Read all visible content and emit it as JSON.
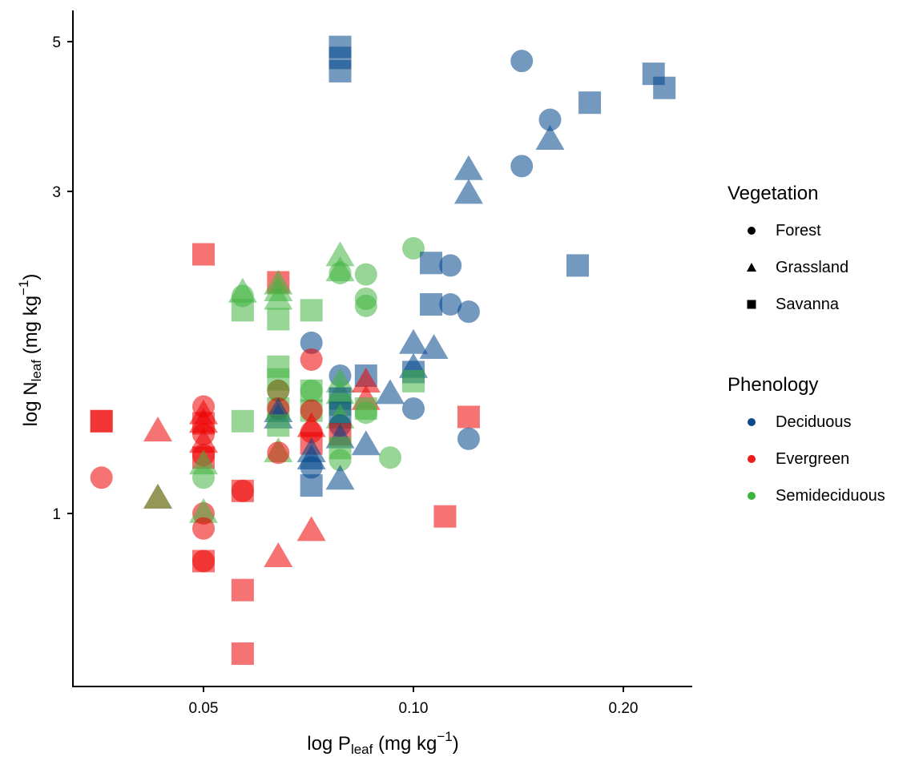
{
  "chart_data": {
    "type": "scatter",
    "title": "",
    "xlabel": {
      "prefix": "log P",
      "sub": "leaf",
      "unit_pre": " (mg kg",
      "sup": "−1",
      "unit_post": ")"
    },
    "ylabel": {
      "prefix": "log N",
      "sub": "leaf",
      "unit_pre": " (mg kg",
      "sup": "−1",
      "unit_post": ")"
    },
    "x_scale": "log",
    "y_scale": "log",
    "xlim": [
      0.0335,
      0.245
    ],
    "ylim": [
      0.56,
      5.6
    ],
    "x_ticks": [
      {
        "value": 0.05,
        "label": "0.05"
      },
      {
        "value": 0.1,
        "label": "0.10"
      },
      {
        "value": 0.2,
        "label": "0.20"
      }
    ],
    "y_ticks": [
      {
        "value": 1,
        "label": "1"
      },
      {
        "value": 3,
        "label": "3"
      },
      {
        "value": 5,
        "label": "5"
      }
    ],
    "grid": false,
    "marker_alpha": 0.55,
    "legend_placement": "right",
    "legends": [
      {
        "title": "Vegetation",
        "items": [
          {
            "label": "Forest",
            "shape": "circle"
          },
          {
            "label": "Grassland",
            "shape": "triangle"
          },
          {
            "label": "Savanna",
            "shape": "square"
          }
        ]
      },
      {
        "title": "Phenology",
        "items": [
          {
            "label": "Deciduous",
            "color": "#0B4A8B"
          },
          {
            "label": "Evergreen",
            "color": "#EE1C1C"
          },
          {
            "label": "Semideciduous",
            "color": "#3CB53C"
          }
        ]
      }
    ],
    "colors": {
      "Deciduous": "#00468B",
      "Evergreen": "#ED0000",
      "Semideciduous": "#42B540"
    },
    "points": [
      {
        "x": 0.0357,
        "y": 1.37,
        "veg": "Savanna",
        "phen": "Evergreen"
      },
      {
        "x": 0.0357,
        "y": 1.37,
        "veg": "Savanna",
        "phen": "Evergreen"
      },
      {
        "x": 0.0357,
        "y": 1.13,
        "veg": "Forest",
        "phen": "Evergreen"
      },
      {
        "x": 0.043,
        "y": 1.32,
        "veg": "Grassland",
        "phen": "Evergreen"
      },
      {
        "x": 0.043,
        "y": 1.05,
        "veg": "Grassland",
        "phen": "Evergreen"
      },
      {
        "x": 0.043,
        "y": 1.05,
        "veg": "Grassland",
        "phen": "Semideciduous"
      },
      {
        "x": 0.05,
        "y": 1.44,
        "veg": "Forest",
        "phen": "Evergreen"
      },
      {
        "x": 0.05,
        "y": 1.4,
        "veg": "Grassland",
        "phen": "Evergreen"
      },
      {
        "x": 0.05,
        "y": 1.36,
        "veg": "Grassland",
        "phen": "Evergreen"
      },
      {
        "x": 0.05,
        "y": 1.36,
        "veg": "Savanna",
        "phen": "Evergreen"
      },
      {
        "x": 0.05,
        "y": 1.31,
        "veg": "Forest",
        "phen": "Evergreen"
      },
      {
        "x": 0.05,
        "y": 1.27,
        "veg": "Grassland",
        "phen": "Evergreen"
      },
      {
        "x": 0.05,
        "y": 1.22,
        "veg": "Forest",
        "phen": "Evergreen"
      },
      {
        "x": 0.05,
        "y": 1.21,
        "veg": "Savanna",
        "phen": "Evergreen"
      },
      {
        "x": 0.05,
        "y": 1.18,
        "veg": "Grassland",
        "phen": "Semideciduous"
      },
      {
        "x": 0.05,
        "y": 1.13,
        "veg": "Forest",
        "phen": "Semideciduous"
      },
      {
        "x": 0.05,
        "y": 1.0,
        "veg": "Forest",
        "phen": "Evergreen"
      },
      {
        "x": 0.05,
        "y": 1.0,
        "veg": "Grassland",
        "phen": "Semideciduous"
      },
      {
        "x": 0.05,
        "y": 0.95,
        "veg": "Forest",
        "phen": "Evergreen"
      },
      {
        "x": 0.05,
        "y": 0.85,
        "veg": "Savanna",
        "phen": "Evergreen"
      },
      {
        "x": 0.05,
        "y": 0.85,
        "veg": "Forest",
        "phen": "Evergreen"
      },
      {
        "x": 0.05,
        "y": 2.42,
        "veg": "Savanna",
        "phen": "Evergreen"
      },
      {
        "x": 0.0569,
        "y": 2.12,
        "veg": "Grassland",
        "phen": "Semideciduous"
      },
      {
        "x": 0.0569,
        "y": 2.1,
        "veg": "Forest",
        "phen": "Semideciduous"
      },
      {
        "x": 0.0569,
        "y": 2.0,
        "veg": "Savanna",
        "phen": "Semideciduous"
      },
      {
        "x": 0.0569,
        "y": 1.37,
        "veg": "Savanna",
        "phen": "Semideciduous"
      },
      {
        "x": 0.0569,
        "y": 1.08,
        "veg": "Savanna",
        "phen": "Evergreen"
      },
      {
        "x": 0.0569,
        "y": 1.08,
        "veg": "Forest",
        "phen": "Evergreen"
      },
      {
        "x": 0.0569,
        "y": 0.77,
        "veg": "Savanna",
        "phen": "Evergreen"
      },
      {
        "x": 0.0569,
        "y": 0.62,
        "veg": "Savanna",
        "phen": "Evergreen"
      },
      {
        "x": 0.064,
        "y": 2.2,
        "veg": "Savanna",
        "phen": "Evergreen"
      },
      {
        "x": 0.064,
        "y": 2.18,
        "veg": "Grassland",
        "phen": "Semideciduous"
      },
      {
        "x": 0.064,
        "y": 2.13,
        "veg": "Grassland",
        "phen": "Semideciduous"
      },
      {
        "x": 0.064,
        "y": 2.07,
        "veg": "Grassland",
        "phen": "Semideciduous"
      },
      {
        "x": 0.064,
        "y": 1.94,
        "veg": "Savanna",
        "phen": "Semideciduous"
      },
      {
        "x": 0.064,
        "y": 1.65,
        "veg": "Savanna",
        "phen": "Semideciduous"
      },
      {
        "x": 0.064,
        "y": 1.58,
        "veg": "Savanna",
        "phen": "Semideciduous"
      },
      {
        "x": 0.064,
        "y": 1.52,
        "veg": "Forest",
        "phen": "Evergreen"
      },
      {
        "x": 0.064,
        "y": 1.52,
        "veg": "Forest",
        "phen": "Semideciduous"
      },
      {
        "x": 0.064,
        "y": 1.43,
        "veg": "Savanna",
        "phen": "Semideciduous"
      },
      {
        "x": 0.064,
        "y": 1.43,
        "veg": "Forest",
        "phen": "Evergreen"
      },
      {
        "x": 0.064,
        "y": 1.41,
        "veg": "Grassland",
        "phen": "Deciduous"
      },
      {
        "x": 0.064,
        "y": 1.38,
        "veg": "Grassland",
        "phen": "Deciduous"
      },
      {
        "x": 0.064,
        "y": 1.35,
        "veg": "Savanna",
        "phen": "Semideciduous"
      },
      {
        "x": 0.064,
        "y": 1.23,
        "veg": "Grassland",
        "phen": "Semideciduous"
      },
      {
        "x": 0.064,
        "y": 1.23,
        "veg": "Forest",
        "phen": "Evergreen"
      },
      {
        "x": 0.064,
        "y": 0.86,
        "veg": "Grassland",
        "phen": "Evergreen"
      },
      {
        "x": 0.0714,
        "y": 2.0,
        "veg": "Savanna",
        "phen": "Semideciduous"
      },
      {
        "x": 0.0714,
        "y": 1.79,
        "veg": "Forest",
        "phen": "Deciduous"
      },
      {
        "x": 0.0714,
        "y": 1.69,
        "veg": "Forest",
        "phen": "Evergreen"
      },
      {
        "x": 0.0714,
        "y": 1.52,
        "veg": "Forest",
        "phen": "Semideciduous"
      },
      {
        "x": 0.0714,
        "y": 1.52,
        "veg": "Savanna",
        "phen": "Semideciduous"
      },
      {
        "x": 0.0714,
        "y": 1.42,
        "veg": "Savanna",
        "phen": "Semideciduous"
      },
      {
        "x": 0.0714,
        "y": 1.42,
        "veg": "Forest",
        "phen": "Evergreen"
      },
      {
        "x": 0.0714,
        "y": 1.34,
        "veg": "Grassland",
        "phen": "Evergreen"
      },
      {
        "x": 0.0714,
        "y": 1.32,
        "veg": "Forest",
        "phen": "Evergreen"
      },
      {
        "x": 0.0714,
        "y": 1.27,
        "veg": "Savanna",
        "phen": "Evergreen"
      },
      {
        "x": 0.0714,
        "y": 1.23,
        "veg": "Grassland",
        "phen": "Deciduous"
      },
      {
        "x": 0.0714,
        "y": 1.2,
        "veg": "Grassland",
        "phen": "Deciduous"
      },
      {
        "x": 0.0714,
        "y": 1.17,
        "veg": "Forest",
        "phen": "Deciduous"
      },
      {
        "x": 0.0714,
        "y": 1.1,
        "veg": "Savanna",
        "phen": "Deciduous"
      },
      {
        "x": 0.0714,
        "y": 0.94,
        "veg": "Grassland",
        "phen": "Evergreen"
      },
      {
        "x": 0.0785,
        "y": 2.4,
        "veg": "Grassland",
        "phen": "Semideciduous"
      },
      {
        "x": 0.0785,
        "y": 2.28,
        "veg": "Grassland",
        "phen": "Semideciduous"
      },
      {
        "x": 0.0785,
        "y": 2.27,
        "veg": "Forest",
        "phen": "Semideciduous"
      },
      {
        "x": 0.0785,
        "y": 1.6,
        "veg": "Forest",
        "phen": "Deciduous"
      },
      {
        "x": 0.0785,
        "y": 1.56,
        "veg": "Grassland",
        "phen": "Semideciduous"
      },
      {
        "x": 0.0785,
        "y": 1.5,
        "veg": "Grassland",
        "phen": "Semideciduous"
      },
      {
        "x": 0.0785,
        "y": 1.48,
        "veg": "Savanna",
        "phen": "Deciduous"
      },
      {
        "x": 0.0785,
        "y": 1.45,
        "veg": "Savanna",
        "phen": "Semideciduous"
      },
      {
        "x": 0.0785,
        "y": 1.41,
        "veg": "Savanna",
        "phen": "Deciduous"
      },
      {
        "x": 0.0785,
        "y": 1.38,
        "veg": "Grassland",
        "phen": "Semideciduous"
      },
      {
        "x": 0.0785,
        "y": 1.35,
        "veg": "Forest",
        "phen": "Deciduous"
      },
      {
        "x": 0.0785,
        "y": 1.31,
        "veg": "Savanna",
        "phen": "Evergreen"
      },
      {
        "x": 0.0785,
        "y": 1.29,
        "veg": "Grassland",
        "phen": "Deciduous"
      },
      {
        "x": 0.0785,
        "y": 1.25,
        "veg": "Savanna",
        "phen": "Semideciduous"
      },
      {
        "x": 0.0785,
        "y": 1.2,
        "veg": "Forest",
        "phen": "Semideciduous"
      },
      {
        "x": 0.0785,
        "y": 1.12,
        "veg": "Grassland",
        "phen": "Deciduous"
      },
      {
        "x": 0.0785,
        "y": 4.91,
        "veg": "Savanna",
        "phen": "Deciduous"
      },
      {
        "x": 0.0785,
        "y": 4.73,
        "veg": "Savanna",
        "phen": "Deciduous"
      },
      {
        "x": 0.0785,
        "y": 4.52,
        "veg": "Savanna",
        "phen": "Deciduous"
      },
      {
        "x": 0.0855,
        "y": 2.26,
        "veg": "Forest",
        "phen": "Semideciduous"
      },
      {
        "x": 0.0855,
        "y": 2.08,
        "veg": "Forest",
        "phen": "Semideciduous"
      },
      {
        "x": 0.0855,
        "y": 2.03,
        "veg": "Forest",
        "phen": "Semideciduous"
      },
      {
        "x": 0.0855,
        "y": 1.6,
        "veg": "Savanna",
        "phen": "Deciduous"
      },
      {
        "x": 0.0855,
        "y": 1.56,
        "veg": "Grassland",
        "phen": "Evergreen"
      },
      {
        "x": 0.0855,
        "y": 1.47,
        "veg": "Grassland",
        "phen": "Evergreen"
      },
      {
        "x": 0.0855,
        "y": 1.43,
        "veg": "Savanna",
        "phen": "Semideciduous"
      },
      {
        "x": 0.0855,
        "y": 1.41,
        "veg": "Forest",
        "phen": "Semideciduous"
      },
      {
        "x": 0.0855,
        "y": 1.26,
        "veg": "Grassland",
        "phen": "Deciduous"
      },
      {
        "x": 0.0926,
        "y": 1.5,
        "veg": "Grassland",
        "phen": "Deciduous"
      },
      {
        "x": 0.0926,
        "y": 1.21,
        "veg": "Forest",
        "phen": "Semideciduous"
      },
      {
        "x": 0.1,
        "y": 2.47,
        "veg": "Forest",
        "phen": "Semideciduous"
      },
      {
        "x": 0.1,
        "y": 1.78,
        "veg": "Grassland",
        "phen": "Deciduous"
      },
      {
        "x": 0.1,
        "y": 1.64,
        "veg": "Grassland",
        "phen": "Deciduous"
      },
      {
        "x": 0.1,
        "y": 1.62,
        "veg": "Savanna",
        "phen": "Deciduous"
      },
      {
        "x": 0.1,
        "y": 1.57,
        "veg": "Savanna",
        "phen": "Semideciduous"
      },
      {
        "x": 0.1,
        "y": 1.43,
        "veg": "Forest",
        "phen": "Deciduous"
      },
      {
        "x": 0.106,
        "y": 2.35,
        "veg": "Savanna",
        "phen": "Deciduous"
      },
      {
        "x": 0.106,
        "y": 2.04,
        "veg": "Savanna",
        "phen": "Deciduous"
      },
      {
        "x": 0.107,
        "y": 1.75,
        "veg": "Grassland",
        "phen": "Deciduous"
      },
      {
        "x": 0.113,
        "y": 2.33,
        "veg": "Forest",
        "phen": "Deciduous"
      },
      {
        "x": 0.113,
        "y": 2.04,
        "veg": "Forest",
        "phen": "Deciduous"
      },
      {
        "x": 0.111,
        "y": 0.99,
        "veg": "Savanna",
        "phen": "Evergreen"
      },
      {
        "x": 0.12,
        "y": 1.99,
        "veg": "Forest",
        "phen": "Deciduous"
      },
      {
        "x": 0.12,
        "y": 1.39,
        "veg": "Savanna",
        "phen": "Evergreen"
      },
      {
        "x": 0.12,
        "y": 1.29,
        "veg": "Forest",
        "phen": "Deciduous"
      },
      {
        "x": 0.12,
        "y": 3.22,
        "veg": "Grassland",
        "phen": "Deciduous"
      },
      {
        "x": 0.12,
        "y": 2.97,
        "veg": "Grassland",
        "phen": "Deciduous"
      },
      {
        "x": 0.143,
        "y": 4.68,
        "veg": "Forest",
        "phen": "Deciduous"
      },
      {
        "x": 0.143,
        "y": 3.27,
        "veg": "Forest",
        "phen": "Deciduous"
      },
      {
        "x": 0.157,
        "y": 3.83,
        "veg": "Forest",
        "phen": "Deciduous"
      },
      {
        "x": 0.157,
        "y": 3.57,
        "veg": "Grassland",
        "phen": "Deciduous"
      },
      {
        "x": 0.172,
        "y": 2.33,
        "veg": "Savanna",
        "phen": "Deciduous"
      },
      {
        "x": 0.179,
        "y": 4.06,
        "veg": "Savanna",
        "phen": "Deciduous"
      },
      {
        "x": 0.221,
        "y": 4.48,
        "veg": "Savanna",
        "phen": "Deciduous"
      },
      {
        "x": 0.229,
        "y": 4.27,
        "veg": "Savanna",
        "phen": "Deciduous"
      }
    ]
  }
}
